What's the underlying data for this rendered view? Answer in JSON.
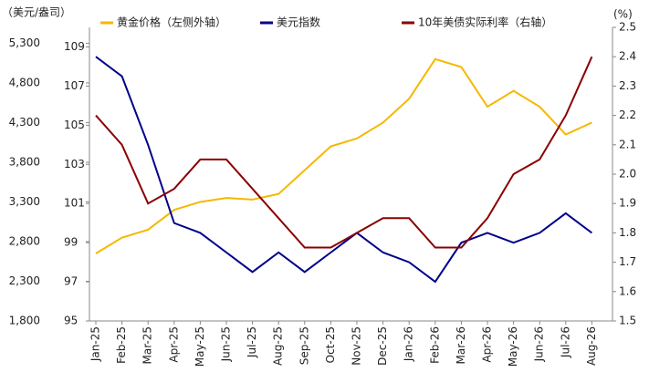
{
  "chart_data": {
    "type": "line",
    "y_label": "（美元/盎司）",
    "y3_label": "(%)",
    "categories": [
      "Jan-25",
      "Feb-25",
      "Mar-25",
      "Apr-25",
      "May-25",
      "Jun-25",
      "Jul-25",
      "Aug-25",
      "Sep-25",
      "Oct-25",
      "Nov-25",
      "Dec-25",
      "Jan-26",
      "Feb-26",
      "Mar-26",
      "Apr-26",
      "May-26",
      "Jun-26",
      "Jul-26",
      "Aug-26"
    ],
    "series": [
      {
        "name": "黄金价格（左侧外轴）",
        "color": "#f5b800",
        "axis": "y",
        "values": [
          2650,
          2850,
          2950,
          3200,
          3300,
          3350,
          3330,
          3400,
          3700,
          4000,
          4100,
          4300,
          4600,
          5100,
          5000,
          4500,
          4700,
          4500,
          4150,
          4300
        ]
      },
      {
        "name": "美元指数",
        "color": "#00008b",
        "axis": "y2",
        "values": [
          108.5,
          107.5,
          104,
          100,
          99.5,
          98.5,
          97.5,
          98.5,
          97.5,
          98.5,
          99.5,
          98.5,
          98,
          97,
          99,
          99.5,
          99,
          99.5,
          100.5,
          99.5
        ]
      },
      {
        "name": "10年美债实际利率（右轴）",
        "color": "#8b0000",
        "axis": "y3",
        "values": [
          2.2,
          2.1,
          1.9,
          1.95,
          2.05,
          2.05,
          1.95,
          1.85,
          1.75,
          1.75,
          1.8,
          1.85,
          1.85,
          1.75,
          1.75,
          1.85,
          2.0,
          2.05,
          2.2,
          2.4
        ]
      }
    ],
    "ylim": [
      1800,
      5500
    ],
    "yticks": [
      {
        "value": 1800,
        "label": "1,800"
      },
      {
        "value": 2300,
        "label": "2,300"
      },
      {
        "value": 2800,
        "label": "2,800"
      },
      {
        "value": 3300,
        "label": "3,300"
      },
      {
        "value": 3800,
        "label": "3,800"
      },
      {
        "value": 4300,
        "label": "4,300"
      },
      {
        "value": 4800,
        "label": "4,800"
      },
      {
        "value": 5300,
        "label": "5,300"
      }
    ],
    "y2lim": [
      95,
      110
    ],
    "y2ticks": [
      95,
      97,
      99,
      101,
      103,
      105,
      107,
      109
    ],
    "y3lim": [
      1.5,
      2.5
    ],
    "y3ticks": [
      1.5,
      1.6,
      1.7,
      1.8,
      1.9,
      {
        "value": 2,
        "label": "2.0"
      },
      2.1,
      2.2,
      2.3,
      2.4,
      2.5
    ]
  }
}
